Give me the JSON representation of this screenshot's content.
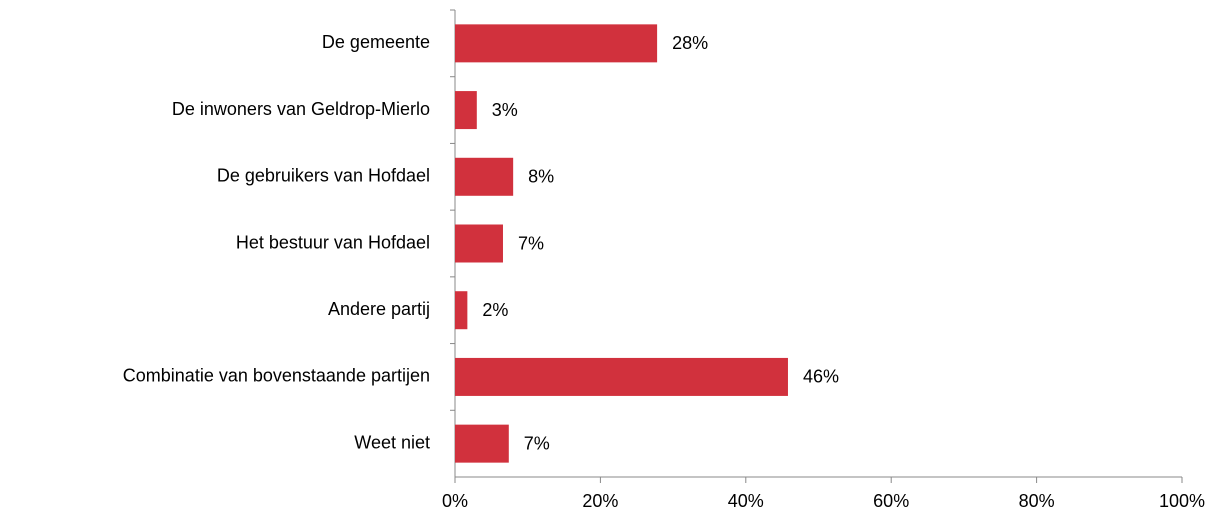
{
  "chart_data": {
    "type": "bar",
    "orientation": "horizontal",
    "categories": [
      "De gemeente",
      "De inwoners van Geldrop-Mierlo",
      "De gebruikers van Hofdael",
      "Het bestuur van Hofdael",
      "Andere partij",
      "Combinatie van bovenstaande partijen",
      "Weet niet"
    ],
    "values": [
      27.8,
      3,
      8,
      6.6,
      1.7,
      45.8,
      7.4
    ],
    "value_labels": [
      "28%",
      "3%",
      "8%",
      "7%",
      "2%",
      "46%",
      "7%"
    ],
    "color": "#d1313d",
    "xlim": [
      0,
      100
    ],
    "xticks": [
      {
        "value": 0,
        "label": "0%"
      },
      {
        "value": 20,
        "label": "20%"
      },
      {
        "value": 40,
        "label": "40%"
      },
      {
        "value": 60,
        "label": "60%"
      },
      {
        "value": 80,
        "label": "80%"
      },
      {
        "value": 100,
        "label": "100%"
      }
    ],
    "grid": false
  }
}
